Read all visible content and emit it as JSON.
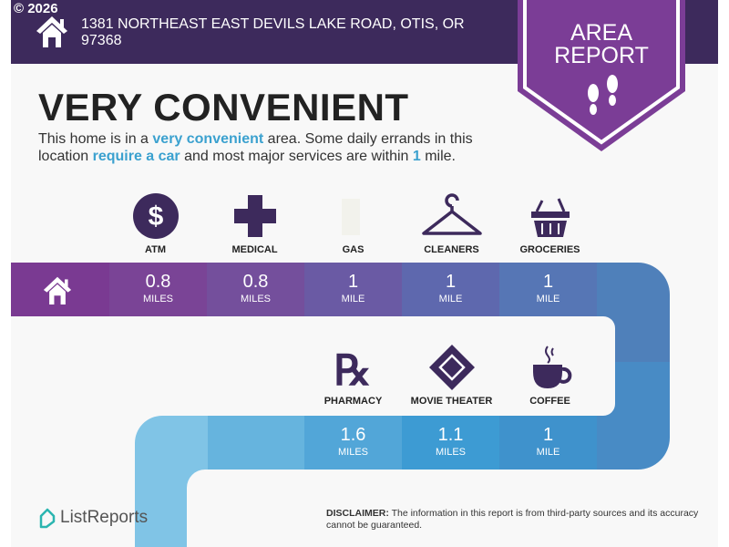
{
  "header": {
    "copyright": "© 2026",
    "address": "1381 NORTHEAST EAST DEVILS LAKE ROAD, OTIS, OR 97368",
    "badge_line1": "AREA",
    "badge_line2": "REPORT"
  },
  "summary": {
    "title": "VERY CONVENIENT",
    "text1": "This home is in a ",
    "hl1": "very convenient",
    "text2": " area. Some daily errands in this location ",
    "hl2": "require a car",
    "text3": " and most major services are within ",
    "hl3": "1",
    "text4": " mile."
  },
  "row1": [
    {
      "label": "ATM",
      "icon": "dollar-icon",
      "value": "0.8",
      "unit": "MILES"
    },
    {
      "label": "MEDICAL",
      "icon": "medical-cross-icon",
      "value": "0.8",
      "unit": "MILES"
    },
    {
      "label": "GAS",
      "icon": "gas-pump-icon",
      "value": "1",
      "unit": "MILE"
    },
    {
      "label": "CLEANERS",
      "icon": "hanger-icon",
      "value": "1",
      "unit": "MILE"
    },
    {
      "label": "GROCERIES",
      "icon": "basket-icon",
      "value": "1",
      "unit": "MILE"
    }
  ],
  "row2": [
    {
      "label": "PHARMACY",
      "icon": "rx-icon",
      "value": "1.6",
      "unit": "MILES"
    },
    {
      "label": "MOVIE THEATER",
      "icon": "ticket-icon",
      "value": "1.1",
      "unit": "MILES"
    },
    {
      "label": "COFFEE",
      "icon": "coffee-cup-icon",
      "value": "1",
      "unit": "MILE"
    }
  ],
  "colors": {
    "header": "#3d2a5c",
    "badge": "#7b3d96",
    "accent": "#3ba1cf",
    "icon": "#3d2a5c"
  },
  "footer": {
    "logo": "ListReports",
    "disclaimer_label": "DISCLAIMER:",
    "disclaimer": " The information in this report is from third-party sources and its accuracy cannot be guaranteed."
  }
}
